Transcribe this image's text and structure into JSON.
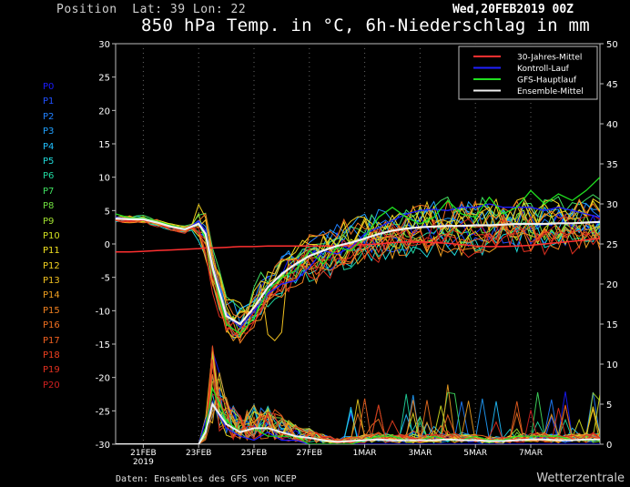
{
  "header": {
    "position_label": "Position",
    "lat_label": "Lat:",
    "lat": 39,
    "lon_label": "Lon:",
    "lon": 22,
    "datetime": "Wed,20FEB2019 00Z",
    "title": "850 hPa Temp. in °C, 6h-Niederschlag in mm"
  },
  "footer": {
    "source": "Daten: Ensembles des GFS von NCEP",
    "brand": "Wetterzentrale"
  },
  "members": [
    "P0",
    "P1",
    "P2",
    "P3",
    "P4",
    "P5",
    "P6",
    "P7",
    "P8",
    "P9",
    "P10",
    "P11",
    "P12",
    "P13",
    "P14",
    "P15",
    "P16",
    "P17",
    "P18",
    "P19",
    "P20"
  ],
  "member_colors": [
    "#1a1aff",
    "#2050ff",
    "#2080ff",
    "#20a0ff",
    "#20c0ff",
    "#20d8d8",
    "#20d8a0",
    "#40e060",
    "#70e040",
    "#a0e030",
    "#d0e020",
    "#f0e020",
    "#f0d020",
    "#f0c020",
    "#f0a020",
    "#f08020",
    "#f07020",
    "#f06020",
    "#f04020",
    "#e03020",
    "#d02020"
  ],
  "chart_data": {
    "type": "line",
    "title": "850 hPa Temp. in °C, 6h-Niederschlag in mm",
    "x_tick_labels": [
      "21FEB",
      "23FEB",
      "25FEB",
      "27FEB",
      "1MAR",
      "3MAR",
      "5MAR",
      "7MAR"
    ],
    "x_tick_sublabel": "2019",
    "x_range_days": [
      20,
      37.5
    ],
    "y_left_label": "°C",
    "y_left_range": [
      -30,
      30
    ],
    "y_left_ticks": [
      30,
      25,
      20,
      15,
      10,
      5,
      0,
      -5,
      -10,
      -15,
      -20,
      -25,
      -30
    ],
    "y_right_label": "mm",
    "y_right_range": [
      0,
      50
    ],
    "y_right_ticks": [
      50,
      45,
      40,
      35,
      30,
      25,
      20,
      15,
      10,
      5,
      0
    ],
    "legend_position": "top-right",
    "legend": [
      {
        "name": "30-Jahres-Mittel",
        "color": "#ff3030"
      },
      {
        "name": "Kontroll-Lauf",
        "color": "#2020ff"
      },
      {
        "name": "GFS-Hauptlauf",
        "color": "#20e020"
      },
      {
        "name": "Ensemble-Mittel",
        "color": "#f0f0f0"
      }
    ],
    "x_days": [
      20.0,
      20.5,
      21.0,
      21.5,
      22.0,
      22.5,
      23.0,
      23.25,
      23.5,
      24.0,
      24.5,
      25.0,
      25.5,
      26.0,
      26.5,
      27.0,
      27.5,
      28.0,
      28.5,
      29.0,
      29.5,
      30.0,
      30.5,
      31.0,
      31.5,
      32.0,
      32.5,
      33.0,
      33.5,
      34.0,
      34.5,
      35.0,
      35.5,
      36.0,
      36.5,
      37.0,
      37.5
    ],
    "climate_mean": [
      -1.2,
      -1.2,
      -1.1,
      -1.0,
      -0.9,
      -0.8,
      -0.7,
      -0.6,
      -0.6,
      -0.5,
      -0.4,
      -0.4,
      -0.3,
      -0.3,
      -0.3,
      -0.3,
      -0.3,
      -0.3,
      -0.2,
      -0.1,
      0.0,
      0.2,
      0.3,
      0.3,
      0.2,
      0.1,
      -0.1,
      -0.3,
      -0.4,
      -0.4,
      -0.3,
      -0.2,
      0.0,
      0.2,
      0.4,
      0.6,
      0.8
    ],
    "control_run": [
      4.0,
      3.7,
      3.8,
      3.2,
      2.6,
      2.1,
      3.4,
      2.0,
      -3.0,
      -10.5,
      -12.5,
      -10.0,
      -7.5,
      -6.0,
      -5.5,
      -3.5,
      -1.0,
      -1.5,
      -0.5,
      1.5,
      2.5,
      3.5,
      4.5,
      5.0,
      5.2,
      5.0,
      5.5,
      5.5,
      6.0,
      5.5,
      5.5,
      5.5,
      5.0,
      5.5,
      5.0,
      4.5,
      4.0
    ],
    "gfs_main_run": [
      4.5,
      3.9,
      3.9,
      3.4,
      2.8,
      2.3,
      3.0,
      1.0,
      -4.0,
      -12.0,
      -13.5,
      -11.0,
      -7.0,
      -5.0,
      -4.0,
      -1.0,
      -3.0,
      -0.5,
      -1.0,
      1.0,
      4.0,
      5.5,
      4.0,
      3.0,
      4.0,
      6.5,
      4.5,
      4.0,
      7.0,
      4.5,
      5.5,
      8.0,
      6.0,
      7.5,
      6.5,
      8.0,
      10.0
    ],
    "ensemble_mean": [
      3.8,
      3.7,
      3.7,
      3.2,
      2.6,
      2.2,
      3.0,
      1.5,
      -3.5,
      -10.8,
      -12.0,
      -9.5,
      -6.5,
      -4.5,
      -3.0,
      -1.8,
      -1.0,
      -0.3,
      0.2,
      0.8,
      1.5,
      2.0,
      2.3,
      2.5,
      2.6,
      2.7,
      2.7,
      2.8,
      2.8,
      2.9,
      3.0,
      3.0,
      3.0,
      3.1,
      3.1,
      3.2,
      3.3
    ],
    "precip_control_mm": [
      0,
      0,
      0,
      0,
      0,
      0,
      0,
      3,
      5,
      2,
      1,
      0.5,
      1.5,
      0.5,
      0.5,
      0,
      0,
      0,
      0,
      0,
      0,
      0,
      0,
      0,
      0,
      0,
      0,
      0,
      0,
      0,
      0,
      0,
      0,
      0,
      0,
      0,
      0
    ],
    "precip_gfs_mm": [
      0,
      0,
      0,
      0,
      0,
      0,
      0,
      2,
      7,
      3,
      1.5,
      2,
      1,
      1,
      1,
      0,
      0,
      0,
      0,
      0.5,
      1,
      1,
      0.5,
      0.5,
      1,
      0.5,
      0.5,
      1,
      0.5,
      0.5,
      1,
      1,
      1,
      1,
      0.5,
      0.5,
      0.5
    ],
    "precip_ensemble_mean_mm": [
      0,
      0,
      0,
      0,
      0,
      0,
      0,
      1.5,
      5,
      2.5,
      1.5,
      2,
      2,
      1.5,
      1,
      0.8,
      0.5,
      0.3,
      0.4,
      0.5,
      0.6,
      0.5,
      0.5,
      0.5,
      0.5,
      0.6,
      0.5,
      0.5,
      0.4,
      0.4,
      0.5,
      0.6,
      0.6,
      0.5,
      0.5,
      0.6,
      0.6
    ]
  }
}
